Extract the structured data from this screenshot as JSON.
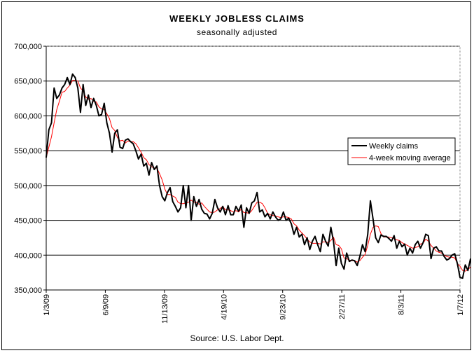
{
  "chart_data": {
    "type": "line",
    "title": "WEEKLY JOBLESS CLAIMS",
    "subtitle": "seasonally adjusted",
    "source": "Source: U.S. Labor Dept.",
    "x_range": [
      "2009-01-03",
      "2012-01-07"
    ],
    "ylim": [
      350000,
      700000
    ],
    "y_ticks": [
      350000,
      400000,
      450000,
      500000,
      550000,
      600000,
      650000,
      700000
    ],
    "y_tick_labels": [
      "350,000",
      "400,000",
      "450,000",
      "500,000",
      "550,000",
      "600,000",
      "650,000",
      "700,000"
    ],
    "x_ticks": [
      "2009-01-03",
      "2009-06-09",
      "2009-11-13",
      "2010-04-19",
      "2010-09-23",
      "2011-02-27",
      "2011-08-03",
      "2012-01-07"
    ],
    "x_tick_labels": [
      "1/3/09",
      "6/9/09",
      "11/13/09",
      "4/19/10",
      "9/23/10",
      "2/27/11",
      "8/3/11",
      "1/7/12"
    ],
    "grid": "horizontal",
    "legend_position": "right",
    "series": [
      {
        "name": "Weekly claims",
        "color": "#000000",
        "start_date": "2009-01-03",
        "interval_days": 7,
        "values": [
          540000,
          580000,
          590000,
          640000,
          625000,
          630000,
          640000,
          645000,
          655000,
          645000,
          660000,
          655000,
          640000,
          605000,
          645000,
          615000,
          630000,
          612000,
          625000,
          615000,
          600000,
          602000,
          618000,
          590000,
          575000,
          548000,
          575000,
          580000,
          555000,
          553000,
          565000,
          567000,
          563000,
          560000,
          550000,
          538000,
          545000,
          528000,
          532000,
          515000,
          533000,
          523000,
          528000,
          500000,
          484000,
          478000,
          490000,
          497000,
          477000,
          470000,
          462000,
          468000,
          500000,
          468000,
          500000,
          450000,
          484000,
          470000,
          480000,
          466000,
          460000,
          459000,
          452000,
          460000,
          480000,
          468000,
          462000,
          470000,
          458000,
          471000,
          458000,
          458000,
          470000,
          463000,
          472000,
          440000,
          468000,
          460000,
          475000,
          478000,
          490000,
          462000,
          465000,
          455000,
          460000,
          452000,
          462000,
          455000,
          450000,
          452000,
          462000,
          450000,
          453000,
          445000,
          430000,
          440000,
          426000,
          430000,
          415000,
          425000,
          408000,
          420000,
          427000,
          415000,
          405000,
          430000,
          420000,
          413000,
          440000,
          420000,
          385000,
          410000,
          388000,
          380000,
          403000,
          391000,
          393000,
          392000,
          385000,
          398000,
          415000,
          405000,
          430000,
          478000,
          452000,
          425000,
          418000,
          429000,
          427000,
          427000,
          424000,
          420000,
          428000,
          410000,
          420000,
          412000,
          416000,
          400000,
          410000,
          403000,
          415000,
          420000,
          410000,
          418000,
          430000,
          428000,
          395000,
          410000,
          412000,
          406000,
          406000,
          398000,
          393000,
          395000,
          400000,
          402000,
          388000,
          368000,
          367000,
          386000,
          378000,
          395000
        ]
      },
      {
        "name": "4-week moving average",
        "color": "#ff0000",
        "start_date": "2009-01-03",
        "interval_days": 7,
        "values": [
          540000,
          555000,
          570000,
          590000,
          609000,
          621000,
          634000,
          635000,
          640000,
          644000,
          651000,
          651000,
          650000,
          640000,
          636000,
          627000,
          624000,
          625000,
          621000,
          620000,
          613000,
          610000,
          609000,
          603000,
          596000,
          583000,
          579000,
          569000,
          564000,
          565000,
          561000,
          564000,
          563000,
          563000,
          560000,
          554000,
          548000,
          540000,
          537000,
          530000,
          527000,
          525000,
          525000,
          517000,
          508000,
          495000,
          487000,
          487000,
          485000,
          483000,
          476000,
          474000,
          474000,
          475000,
          476000,
          479000,
          476000,
          476000,
          473000,
          475000,
          470000,
          466000,
          462000,
          461000,
          462000,
          465000,
          467000,
          470000,
          465000,
          465000,
          464000,
          462000,
          464000,
          462000,
          466000,
          461000,
          461000,
          460000,
          464000,
          470000,
          476000,
          476000,
          474000,
          468000,
          460000,
          458000,
          457000,
          456000,
          455000,
          454000,
          455000,
          455000,
          454000,
          452000,
          445000,
          442000,
          436000,
          432000,
          428000,
          423000,
          419000,
          417000,
          417000,
          417000,
          416000,
          419000,
          419000,
          418000,
          421000,
          426000,
          415000,
          414000,
          409000,
          396000,
          395000,
          393000,
          392000,
          392000,
          390000,
          392000,
          397000,
          401000,
          414000,
          430000,
          440000,
          442000,
          441000,
          431000,
          426000,
          426000,
          426000,
          425000,
          424000,
          422000,
          421000,
          418000,
          416000,
          414000,
          412000,
          410000,
          411000,
          412000,
          416000,
          417000,
          423000,
          420000,
          414000,
          410000,
          406000,
          404000,
          403000,
          400000,
          398000,
          397000,
          397000,
          396000,
          388000,
          384000,
          378000,
          377000,
          379000,
          383000
        ]
      }
    ]
  }
}
